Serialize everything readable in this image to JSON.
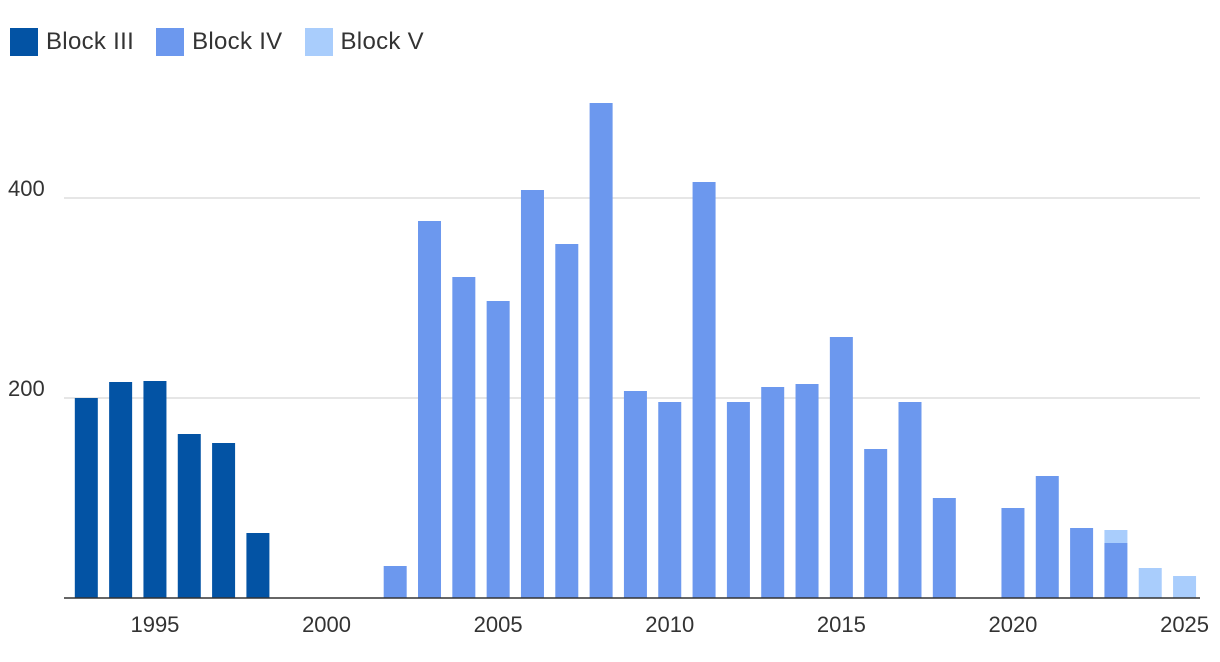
{
  "chart_data": {
    "type": "bar",
    "stacked": true,
    "series": [
      {
        "name": "Block III",
        "color": "#0353a4"
      },
      {
        "name": "Block IV",
        "color": "#6c98ee"
      },
      {
        "name": "Block V",
        "color": "#a9cdfc"
      }
    ],
    "x": [
      1993,
      1994,
      1995,
      1996,
      1997,
      1998,
      1999,
      2000,
      2001,
      2002,
      2003,
      2004,
      2005,
      2006,
      2007,
      2008,
      2009,
      2010,
      2011,
      2012,
      2013,
      2014,
      2015,
      2016,
      2017,
      2018,
      2019,
      2020,
      2021,
      2022,
      2023,
      2024,
      2025
    ],
    "values": {
      "Block III": [
        200,
        216,
        217,
        164,
        155,
        65,
        0,
        0,
        0,
        0,
        0,
        0,
        0,
        0,
        0,
        0,
        0,
        0,
        0,
        0,
        0,
        0,
        0,
        0,
        0,
        0,
        0,
        0,
        0,
        0,
        0,
        0,
        0
      ],
      "Block IV": [
        0,
        0,
        0,
        0,
        0,
        0,
        0,
        0,
        0,
        32,
        377,
        321,
        297,
        408,
        354,
        495,
        207,
        196,
        416,
        196,
        211,
        214,
        261,
        149,
        196,
        100,
        0,
        90,
        122,
        70,
        55,
        0,
        0
      ],
      "Block V": [
        0,
        0,
        0,
        0,
        0,
        0,
        0,
        0,
        0,
        0,
        0,
        0,
        0,
        0,
        0,
        0,
        0,
        0,
        0,
        0,
        0,
        0,
        0,
        0,
        0,
        0,
        0,
        0,
        0,
        0,
        13,
        30,
        22
      ]
    },
    "x_ticks": [
      1995,
      2000,
      2005,
      2010,
      2015,
      2020,
      2025
    ],
    "y_ticks": [
      200,
      400
    ],
    "ylim": [
      0,
      500
    ],
    "xlim": [
      1992.35,
      2025.45
    ],
    "grid": "horizontal",
    "legend_position": "top-left",
    "title": "",
    "xlabel": "",
    "ylabel": ""
  }
}
